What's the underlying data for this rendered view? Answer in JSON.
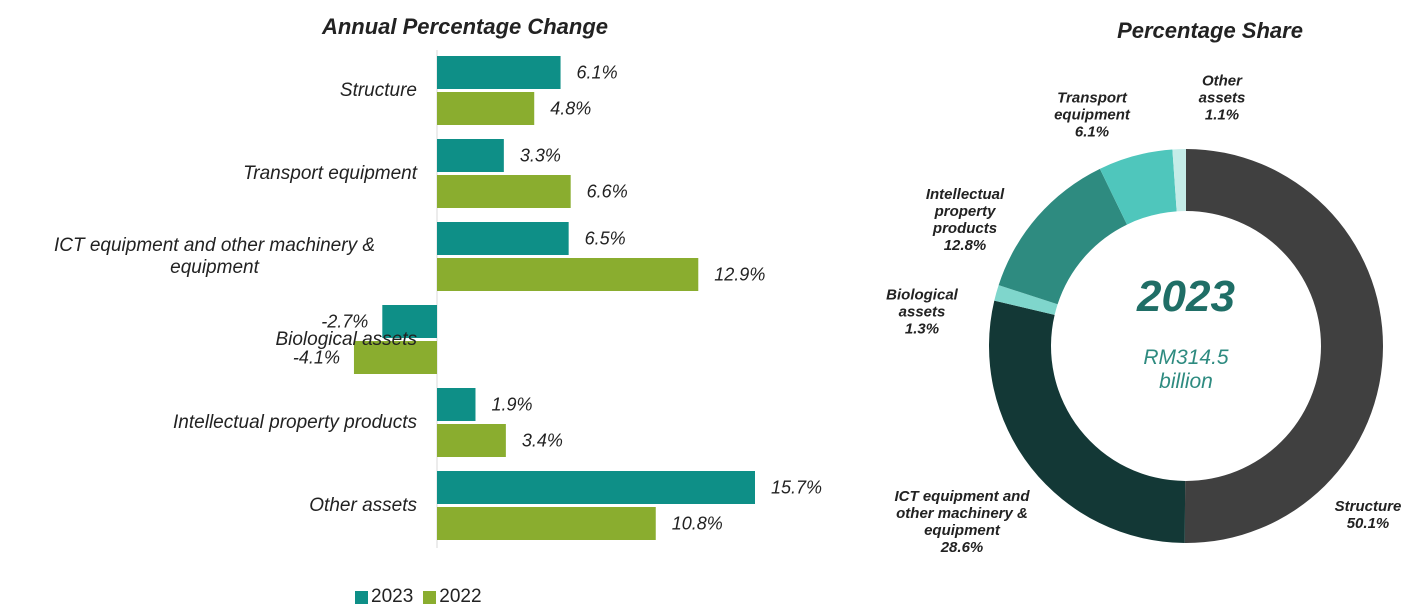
{
  "chart_data": [
    {
      "type": "bar",
      "orientation": "horizontal",
      "title": "Annual Percentage Change",
      "categories": [
        "Structure",
        "Transport equipment",
        "ICT equipment and other machinery & equipment",
        "Biological assets",
        "Intellectual property products",
        "Other assets"
      ],
      "series": [
        {
          "name": "2023",
          "color": "#0e8f87",
          "values": [
            6.1,
            3.3,
            6.5,
            -2.7,
            1.9,
            15.7
          ],
          "value_labels": [
            "6.1%",
            "3.3%",
            "6.5%",
            "-2.7%",
            "1.9%",
            "15.7%"
          ]
        },
        {
          "name": "2022",
          "color": "#8aad2f",
          "values": [
            4.8,
            6.6,
            12.9,
            -4.1,
            3.4,
            10.8
          ],
          "value_labels": [
            "4.8%",
            "6.6%",
            "12.9%",
            "-4.1%",
            "3.4%",
            "10.8%"
          ]
        }
      ],
      "legend": "bottom"
    },
    {
      "type": "donut",
      "title": "Percentage Share",
      "center_title": "2023",
      "center_text": "RM314.5 billion",
      "categories": [
        "Structure",
        "ICT equipment and other machinery & equipment",
        "Biological assets",
        "Intellectual property products",
        "Transport equipment",
        "Other assets"
      ],
      "values": [
        50.1,
        28.6,
        1.3,
        12.8,
        6.1,
        1.1
      ],
      "value_labels": [
        "50.1%",
        "28.6%",
        "1.3%",
        "12.8%",
        "6.1%",
        "1.1%"
      ],
      "colors": [
        "#404040",
        "#133836",
        "#7fd6cc",
        "#2e8b80",
        "#4fc6bc",
        "#c5ece8"
      ]
    }
  ]
}
